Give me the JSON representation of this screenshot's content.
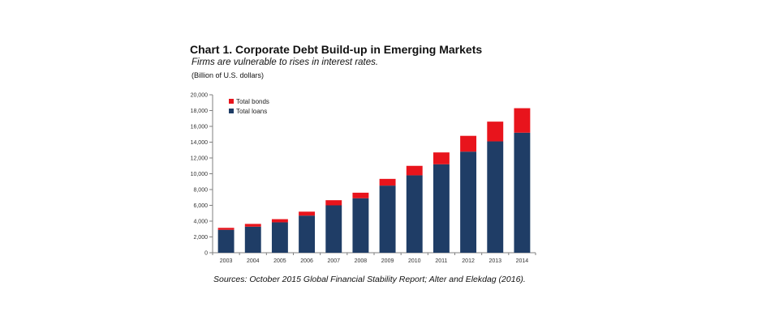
{
  "chart_data": {
    "type": "bar",
    "stacked": true,
    "title": "Chart 1. Corporate Debt Build-up in Emerging Markets",
    "subtitle": "Firms are vulnerable to rises in interest rates.",
    "unit_label": "(Billion of U.S. dollars)",
    "source": "Sources: October 2015 Global Financial Stability Report; Alter and Elekdag (2016).",
    "categories": [
      "2003",
      "2004",
      "2005",
      "2006",
      "2007",
      "2008",
      "2009",
      "2010",
      "2011",
      "2012",
      "2013",
      "2014"
    ],
    "series": [
      {
        "name": "Total loans",
        "color": "#1f3d66",
        "values": [
          2900,
          3300,
          3850,
          4700,
          6000,
          6900,
          8500,
          9800,
          11200,
          12800,
          14100,
          15200
        ]
      },
      {
        "name": "Total bonds",
        "color": "#e8141c",
        "values": [
          250,
          350,
          400,
          500,
          650,
          700,
          850,
          1200,
          1500,
          2000,
          2500,
          3100
        ]
      }
    ],
    "ylim": [
      0,
      20000
    ],
    "yticks": [
      "0",
      "2,000",
      "4,000",
      "6,000",
      "8,000",
      "10,000",
      "12,000",
      "14,000",
      "16,000",
      "18,000",
      "20,000"
    ],
    "ytick_values": [
      0,
      2000,
      4000,
      6000,
      8000,
      10000,
      12000,
      14000,
      16000,
      18000,
      20000
    ],
    "legend_order": [
      "Total bonds",
      "Total loans"
    ],
    "legend_position": "top-left",
    "grid": false
  }
}
